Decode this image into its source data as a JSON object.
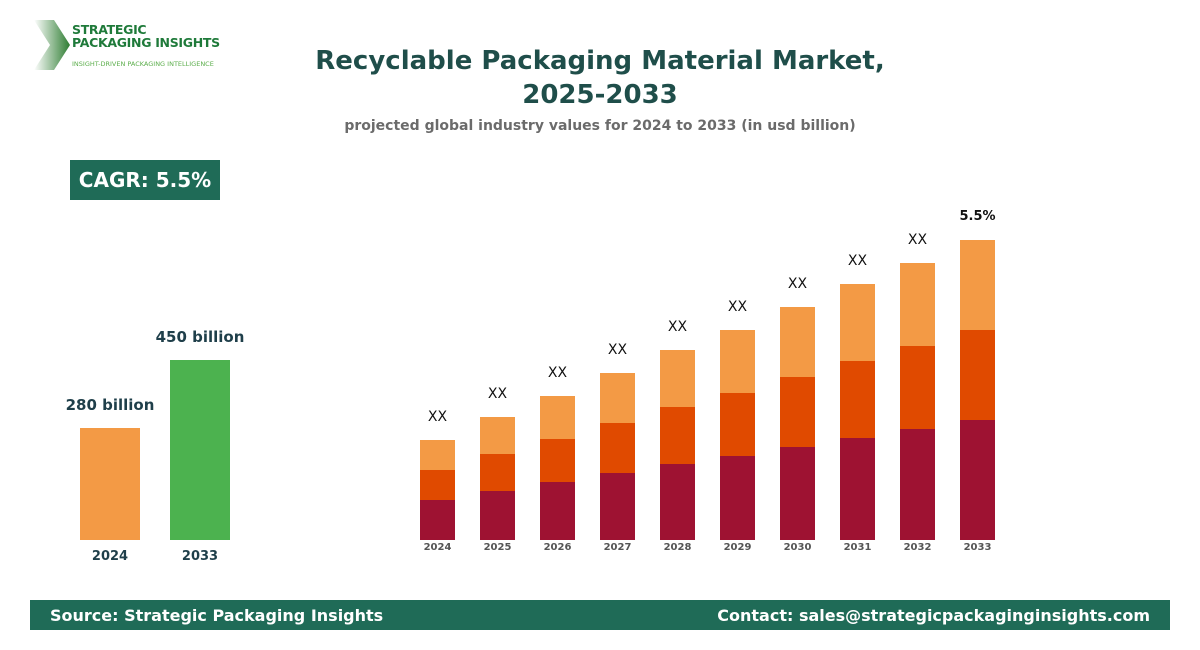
{
  "logo": {
    "line1": "STRATEGIC",
    "line2": "PACKAGING INSIGHTS",
    "tagline": "INSIGHT-DRIVEN PACKAGING INTELLIGENCE"
  },
  "header": {
    "title_line1": "Recyclable Packaging Material Market,",
    "title_line2": "2025-2033",
    "subtitle": "projected global industry values for 2024 to 2033 (in usd billion)"
  },
  "cagr_badge": "CAGR: 5.5%",
  "footer": {
    "source": "Source: Strategic Packaging Insights",
    "contact": "Contact: sales@strategicpackaginginsights.com"
  },
  "chart_data": [
    {
      "type": "bar",
      "categories": [
        "2024",
        "2033"
      ],
      "values": [
        280,
        450
      ],
      "data_labels": [
        "280 billion",
        "450 billion"
      ],
      "colors": [
        "#f39a45",
        "#4cb24f"
      ],
      "ylim": [
        0,
        450
      ]
    },
    {
      "type": "bar",
      "stacked": true,
      "categories": [
        "2024",
        "2025",
        "2026",
        "2027",
        "2028",
        "2029",
        "2030",
        "2031",
        "2032",
        "2033"
      ],
      "series": [
        {
          "values": [
            40,
            49,
            58,
            67,
            76,
            84,
            93,
            102,
            111,
            120
          ],
          "color": "#9e1232"
        },
        {
          "values": [
            30,
            37,
            43,
            50,
            57,
            63,
            70,
            77,
            83,
            90
          ],
          "color": "#e04a00"
        },
        {
          "values": [
            30,
            37,
            43,
            50,
            57,
            63,
            70,
            77,
            83,
            90
          ],
          "color": "#f39a45"
        }
      ],
      "data_labels": [
        "XX",
        "XX",
        "XX",
        "XX",
        "XX",
        "XX",
        "XX",
        "XX",
        "XX",
        "5.5%"
      ],
      "ylim": [
        0,
        300
      ],
      "axes_visible": false,
      "grid": false
    }
  ]
}
